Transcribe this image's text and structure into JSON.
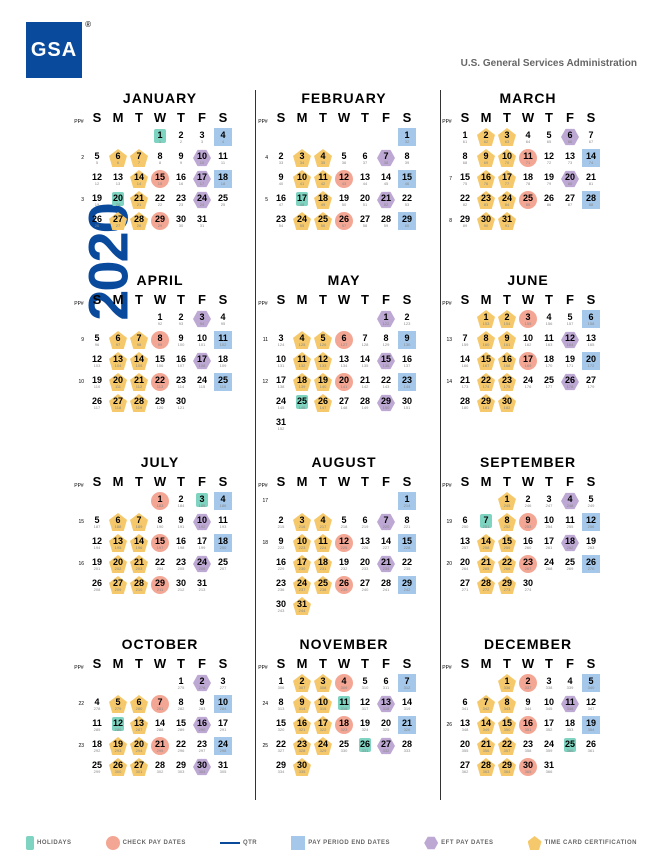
{
  "logo": "GSA",
  "admin": "U.S. General Services Administration",
  "year": "2020",
  "colors": {
    "brand": "#0a4a9c",
    "holiday": "#7ed3c1",
    "check": "#f4a694",
    "ppe": "#a5c8ea",
    "eft": "#bda8d4",
    "tcc": "#f5c96b"
  },
  "dow": [
    "S",
    "M",
    "T",
    "W",
    "T",
    "F",
    "S"
  ],
  "ppLabel": "PP#",
  "legend": {
    "hol": "HOLIDAYS",
    "check": "CHECK PAY DATES",
    "qtr": "QTR",
    "ppe": "PAY PERIOD END DATES",
    "eft": "EFT PAY DATES",
    "tcc": "TIME CARD CERTIFICATION"
  },
  "qtrLabels": [
    "1st QTR ENDS",
    "2nd QTR ENDS",
    "3rd QTR ENDS",
    "4th QTR ENDS"
  ],
  "months": [
    {
      "name": "JANUARY",
      "start": 3,
      "days": 31,
      "startDoy": 1,
      "pp": {
        "1": 2,
        "3": 3
      },
      "marks": {
        "1": "hol",
        "4": "ppe",
        "6": "tcc",
        "7": "tcc",
        "10": "eft",
        "14": "tcc",
        "15": "check",
        "17": "eft",
        "18": "ppe",
        "20": "hol",
        "21": "tcc",
        "24": "eft",
        "27": "tcc",
        "28": "tcc",
        "29": "check"
      }
    },
    {
      "name": "FEBRUARY",
      "start": 6,
      "days": 29,
      "startDoy": 32,
      "pp": {
        "1": 4,
        "3": 5
      },
      "marks": {
        "1": "ppe",
        "3": "tcc",
        "4": "tcc",
        "7": "eft",
        "10": "tcc",
        "11": "tcc",
        "12": "check",
        "15": "ppe",
        "17": "hol",
        "18": "tcc",
        "21": "eft",
        "24": "tcc",
        "25": "tcc",
        "26": "check",
        "29": "ppe"
      }
    },
    {
      "name": "MARCH",
      "start": 0,
      "days": 31,
      "startDoy": 61,
      "pp": {
        "2": 7,
        "4": 8
      },
      "marks": {
        "2": "tcc",
        "3": "tcc",
        "6": "eft",
        "9": "tcc",
        "10": "tcc",
        "11": "check",
        "14": "ppe",
        "16": "tcc",
        "17": "tcc",
        "20": "eft",
        "23": "tcc",
        "24": "tcc",
        "25": "check",
        "28": "ppe",
        "30": "tcc",
        "31": "tcc"
      }
    },
    {
      "name": "APRIL",
      "start": 3,
      "days": 30,
      "startDoy": 92,
      "pp": {
        "1": 9,
        "3": 10
      },
      "marks": {
        "3": "eft",
        "6": "tcc",
        "7": "tcc",
        "8": "check",
        "11": "ppe",
        "13": "tcc",
        "14": "tcc",
        "17": "eft",
        "20": "tcc",
        "21": "tcc",
        "22": "check",
        "25": "ppe",
        "27": "tcc",
        "28": "tcc"
      }
    },
    {
      "name": "MAY",
      "start": 5,
      "days": 31,
      "startDoy": 122,
      "pp": {
        "1": 11,
        "3": 12
      },
      "marks": {
        "1": "eft",
        "4": "tcc",
        "5": "tcc",
        "6": "check",
        "9": "ppe",
        "11": "tcc",
        "12": "tcc",
        "15": "eft",
        "18": "tcc",
        "19": "tcc",
        "20": "check",
        "23": "ppe",
        "25": "hol",
        "26": "tcc",
        "29": "eft"
      }
    },
    {
      "name": "JUNE",
      "start": 1,
      "days": 30,
      "startDoy": 153,
      "pp": {
        "1": 13,
        "3": 14
      },
      "marks": {
        "1": "tcc",
        "2": "tcc",
        "3": "check",
        "6": "ppe",
        "8": "tcc",
        "9": "tcc",
        "12": "eft",
        "15": "tcc",
        "16": "tcc",
        "17": "check",
        "20": "ppe",
        "22": "tcc",
        "23": "tcc",
        "26": "eft",
        "29": "tcc",
        "30": "tcc"
      }
    },
    {
      "name": "JULY",
      "start": 3,
      "days": 31,
      "startDoy": 183,
      "pp": {
        "1": 15,
        "3": 16
      },
      "marks": {
        "1": "check",
        "3": "hol",
        "4": "ppe",
        "6": "tcc",
        "7": "tcc",
        "10": "eft",
        "13": "tcc",
        "14": "tcc",
        "15": "check",
        "18": "ppe",
        "20": "tcc",
        "21": "tcc",
        "24": "eft",
        "27": "tcc",
        "28": "tcc",
        "29": "check"
      }
    },
    {
      "name": "AUGUST",
      "start": 6,
      "days": 31,
      "startDoy": 214,
      "pp": {
        "0": 17,
        "2": 18
      },
      "marks": {
        "1": "ppe",
        "3": "tcc",
        "4": "tcc",
        "7": "eft",
        "10": "tcc",
        "11": "tcc",
        "12": "check",
        "15": "ppe",
        "17": "tcc",
        "18": "tcc",
        "21": "eft",
        "24": "tcc",
        "25": "tcc",
        "26": "check",
        "29": "ppe",
        "31": "tcc"
      }
    },
    {
      "name": "SEPTEMBER",
      "start": 2,
      "days": 30,
      "startDoy": 245,
      "pp": {
        "1": 19,
        "3": 20,
        "5": 21
      },
      "marks": {
        "1": "tcc",
        "4": "eft",
        "7": "hol",
        "8": "tcc",
        "9": "check",
        "12": "ppe",
        "14": "tcc",
        "15": "tcc",
        "18": "eft",
        "21": "tcc",
        "22": "tcc",
        "23": "check",
        "26": "ppe",
        "28": "tcc",
        "29": "tcc"
      }
    },
    {
      "name": "OCTOBER",
      "start": 4,
      "days": 31,
      "startDoy": 275,
      "pp": {
        "1": 22,
        "3": 23
      },
      "marks": {
        "2": "eft",
        "5": "tcc",
        "6": "tcc",
        "7": "check",
        "10": "ppe",
        "12": "hol",
        "13": "tcc",
        "16": "eft",
        "19": "tcc",
        "20": "tcc",
        "21": "check",
        "24": "ppe",
        "26": "tcc",
        "27": "tcc",
        "30": "eft"
      }
    },
    {
      "name": "NOVEMBER",
      "start": 0,
      "days": 30,
      "startDoy": 306,
      "pp": {
        "1": 24,
        "3": 25
      },
      "marks": {
        "2": "tcc",
        "3": "tcc",
        "4": "check",
        "7": "ppe",
        "9": "tcc",
        "10": "tcc",
        "11": "hol",
        "13": "eft",
        "16": "tcc",
        "17": "tcc",
        "18": "check",
        "21": "ppe",
        "23": "tcc",
        "24": "tcc",
        "26": "hol",
        "27": "eft",
        "30": "tcc"
      }
    },
    {
      "name": "DECEMBER",
      "start": 2,
      "days": 31,
      "startDoy": 336,
      "pp": {
        "2": 26
      },
      "marks": {
        "1": "tcc",
        "2": "check",
        "5": "ppe",
        "7": "tcc",
        "8": "tcc",
        "11": "eft",
        "14": "tcc",
        "15": "tcc",
        "16": "check",
        "19": "ppe",
        "21": "tcc",
        "22": "tcc",
        "25": "hol",
        "28": "tcc",
        "29": "tcc",
        "30": "check"
      }
    }
  ]
}
